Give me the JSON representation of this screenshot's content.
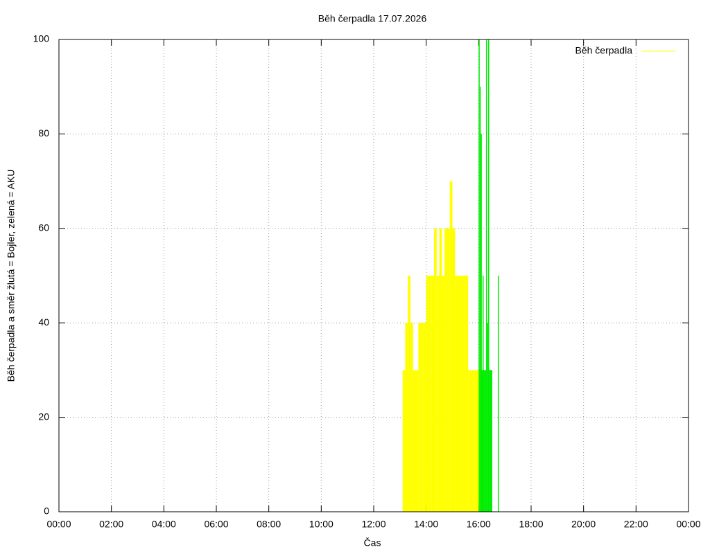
{
  "chart_data": {
    "type": "impulses",
    "title": "Běh čerpadla 17.07.2026",
    "x_label": "Čas",
    "y_label": "Běh čerpadla a směr žlutá = Bojler, zelená = AKU",
    "xlim": [
      0,
      24
    ],
    "xticks": [
      {
        "value": 0,
        "label": "00:00"
      },
      {
        "value": 2,
        "label": "02:00"
      },
      {
        "value": 4,
        "label": "04:00"
      },
      {
        "value": 6,
        "label": "06:00"
      },
      {
        "value": 8,
        "label": "08:00"
      },
      {
        "value": 10,
        "label": "10:00"
      },
      {
        "value": 12,
        "label": "12:00"
      },
      {
        "value": 14,
        "label": "14:00"
      },
      {
        "value": 16,
        "label": "16:00"
      },
      {
        "value": 18,
        "label": "18:00"
      },
      {
        "value": 20,
        "label": "20:00"
      },
      {
        "value": 22,
        "label": "22:00"
      },
      {
        "value": 24,
        "label": "00:00"
      }
    ],
    "ylim": [
      0,
      100
    ],
    "yticks": [
      0,
      20,
      40,
      60,
      80,
      100
    ],
    "grid": true,
    "legend": "top-right",
    "series": [
      {
        "name": "Běh čerpadla",
        "color": "#ffff00",
        "style": "filled",
        "x": [
          13.1,
          13.2,
          13.3,
          13.4,
          13.5,
          13.6,
          13.7,
          13.8,
          13.9,
          14.0,
          14.1,
          14.2,
          14.3,
          14.4,
          14.5,
          14.6,
          14.7,
          14.8,
          14.9,
          15.0,
          15.1,
          15.2,
          15.3,
          15.4,
          15.5,
          15.6,
          15.7,
          15.8,
          15.9,
          16.0
        ],
        "values": [
          30,
          40,
          50,
          40,
          30,
          30,
          40,
          40,
          40,
          50,
          50,
          50,
          60,
          50,
          60,
          50,
          60,
          60,
          70,
          60,
          50,
          50,
          50,
          50,
          50,
          30,
          30,
          30,
          30,
          30
        ]
      },
      {
        "color": "#00ee00",
        "style": "impulse",
        "x": [
          16.02,
          16.06,
          16.1,
          16.13,
          16.17,
          16.2,
          16.23,
          16.27,
          16.3,
          16.34,
          16.38,
          16.42,
          16.46,
          16.5,
          16.75
        ],
        "values": [
          100,
          90,
          80,
          30,
          50,
          30,
          30,
          30,
          100,
          40,
          100,
          30,
          30,
          30,
          50
        ]
      }
    ]
  }
}
